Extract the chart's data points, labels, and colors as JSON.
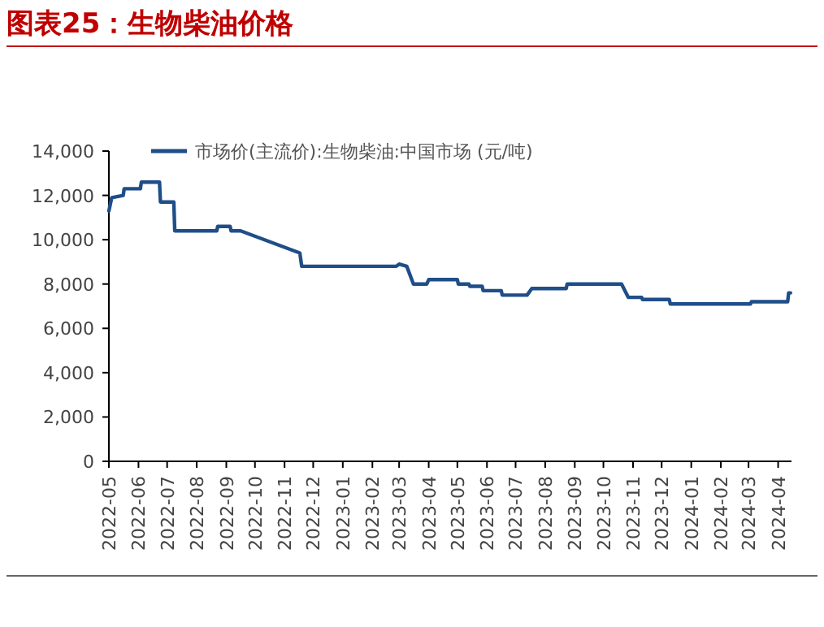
{
  "chart_data": {
    "type": "line",
    "title": "图表25：生物柴油价格",
    "x": [
      "2022-05-01",
      "2022-05-04",
      "2022-05-16",
      "2022-05-17",
      "2022-06-03",
      "2022-06-04",
      "2022-06-23",
      "2022-06-24",
      "2022-07-08",
      "2022-07-09",
      "2022-08-22",
      "2022-08-23",
      "2022-09-05",
      "2022-09-06",
      "2022-09-16",
      "2022-11-17",
      "2022-11-19",
      "2023-02-26",
      "2023-03-01",
      "2023-03-09",
      "2023-03-16",
      "2023-03-30",
      "2023-04-01",
      "2023-05-01",
      "2023-05-02",
      "2023-05-13",
      "2023-05-14",
      "2023-05-27",
      "2023-05-28",
      "2023-06-16",
      "2023-06-17",
      "2023-07-13",
      "2023-07-18",
      "2023-08-23",
      "2023-08-24",
      "2023-10-20",
      "2023-10-27",
      "2023-11-10",
      "2023-11-11",
      "2023-12-09",
      "2023-12-10",
      "2024-03-03",
      "2024-03-04",
      "2024-04-11",
      "2024-04-12",
      "2024-04-14"
    ],
    "series": [
      {
        "name": "市场价(主流价):生物柴油:中国市场 (元/吨)",
        "color": "#1f4e89",
        "values": [
          11300,
          11900,
          12000,
          12300,
          12300,
          12600,
          12600,
          11700,
          11700,
          10400,
          10400,
          10600,
          10600,
          10400,
          10400,
          9400,
          8800,
          8800,
          8900,
          8800,
          8000,
          8000,
          8200,
          8200,
          8000,
          8000,
          7900,
          7900,
          7700,
          7700,
          7500,
          7500,
          7800,
          7800,
          8000,
          8000,
          7400,
          7400,
          7300,
          7300,
          7100,
          7100,
          7200,
          7200,
          7600,
          7600
        ]
      }
    ],
    "xlim": [
      "2022-05-01",
      "2024-04-15"
    ],
    "xticks": [
      "2022-05",
      "2022-06",
      "2022-07",
      "2022-08",
      "2022-09",
      "2022-10",
      "2022-11",
      "2022-12",
      "2023-01",
      "2023-02",
      "2023-03",
      "2023-04",
      "2023-05",
      "2023-06",
      "2023-07",
      "2023-08",
      "2023-09",
      "2023-10",
      "2023-11",
      "2023-12",
      "2024-01",
      "2024-02",
      "2024-03",
      "2024-04"
    ],
    "ylim": [
      0,
      14000
    ],
    "yticks": [
      {
        "value": 0,
        "label": "0"
      },
      {
        "value": 2000,
        "label": "2,000"
      },
      {
        "value": 4000,
        "label": "4,000"
      },
      {
        "value": 6000,
        "label": "6,000"
      },
      {
        "value": 8000,
        "label": "8,000"
      },
      {
        "value": 10000,
        "label": "10,000"
      },
      {
        "value": 12000,
        "label": "12,000"
      },
      {
        "value": 14000,
        "label": "14,000"
      }
    ],
    "grid": false,
    "legend": "top left",
    "marker": "none",
    "line_style": "solid"
  }
}
